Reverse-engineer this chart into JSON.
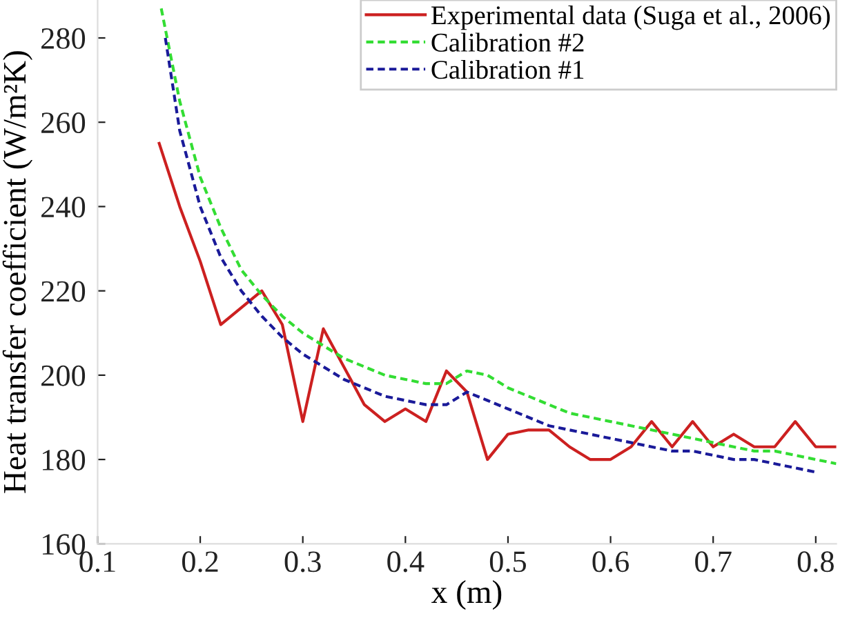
{
  "chart_data": {
    "type": "line",
    "xlabel": "x (m)",
    "ylabel": "Heat transfer coefficient (W/m²K)",
    "xlim": [
      0.1,
      0.82
    ],
    "ylim": [
      160,
      289
    ],
    "xticks": [
      0.1,
      0.2,
      0.3,
      0.4,
      0.5,
      0.6,
      0.7,
      0.8
    ],
    "yticks": [
      160,
      180,
      200,
      220,
      240,
      260,
      280
    ],
    "grid": false,
    "legend": "top right",
    "marker": "none",
    "series": [
      {
        "name": "Experimental data (Suga et al., 2006)",
        "color": "#cc2020",
        "line_style": "solid",
        "x": [
          0.16,
          0.18,
          0.2,
          0.22,
          0.24,
          0.26,
          0.28,
          0.3,
          0.32,
          0.34,
          0.36,
          0.38,
          0.4,
          0.42,
          0.44,
          0.46,
          0.48,
          0.5,
          0.52,
          0.54,
          0.56,
          0.58,
          0.6,
          0.62,
          0.64,
          0.66,
          0.68,
          0.7,
          0.72,
          0.74,
          0.76,
          0.78,
          0.8,
          0.82
        ],
        "values": [
          255,
          240,
          227,
          212,
          216,
          220,
          212,
          189,
          211,
          202,
          193,
          189,
          192,
          189,
          201,
          196,
          180,
          186,
          187,
          187,
          183,
          180,
          180,
          183,
          189,
          183,
          189,
          183,
          186,
          183,
          183,
          189,
          183,
          183
        ]
      },
      {
        "name": "Calibration #2",
        "color": "#33dd33",
        "line_style": "dashed",
        "x": [
          0.162,
          0.18,
          0.2,
          0.22,
          0.24,
          0.26,
          0.28,
          0.3,
          0.32,
          0.34,
          0.36,
          0.38,
          0.4,
          0.42,
          0.44,
          0.46,
          0.48,
          0.5,
          0.52,
          0.54,
          0.56,
          0.58,
          0.6,
          0.62,
          0.64,
          0.66,
          0.68,
          0.7,
          0.72,
          0.74,
          0.76,
          0.78,
          0.8,
          0.82
        ],
        "values": [
          287,
          265,
          247,
          235,
          225,
          219,
          214,
          210,
          207,
          204,
          202,
          200,
          199,
          198,
          198,
          201,
          200,
          197,
          195,
          193,
          191,
          190,
          189,
          188,
          187,
          186,
          185,
          184,
          183,
          182,
          182,
          181,
          180,
          179
        ]
      },
      {
        "name": "Calibration #1",
        "color": "#1a1a99",
        "line_style": "dashed",
        "x": [
          0.166,
          0.18,
          0.2,
          0.22,
          0.24,
          0.26,
          0.28,
          0.3,
          0.32,
          0.34,
          0.36,
          0.38,
          0.4,
          0.42,
          0.44,
          0.46,
          0.48,
          0.5,
          0.52,
          0.54,
          0.56,
          0.58,
          0.6,
          0.62,
          0.64,
          0.66,
          0.68,
          0.7,
          0.72,
          0.74,
          0.76,
          0.78,
          0.8
        ],
        "values": [
          280,
          258,
          240,
          228,
          220,
          214,
          209,
          205,
          202,
          199,
          197,
          195,
          194,
          193,
          193,
          196,
          194,
          192,
          190,
          188,
          187,
          186,
          185,
          184,
          183,
          182,
          182,
          181,
          180,
          180,
          179,
          178,
          177
        ]
      }
    ]
  }
}
